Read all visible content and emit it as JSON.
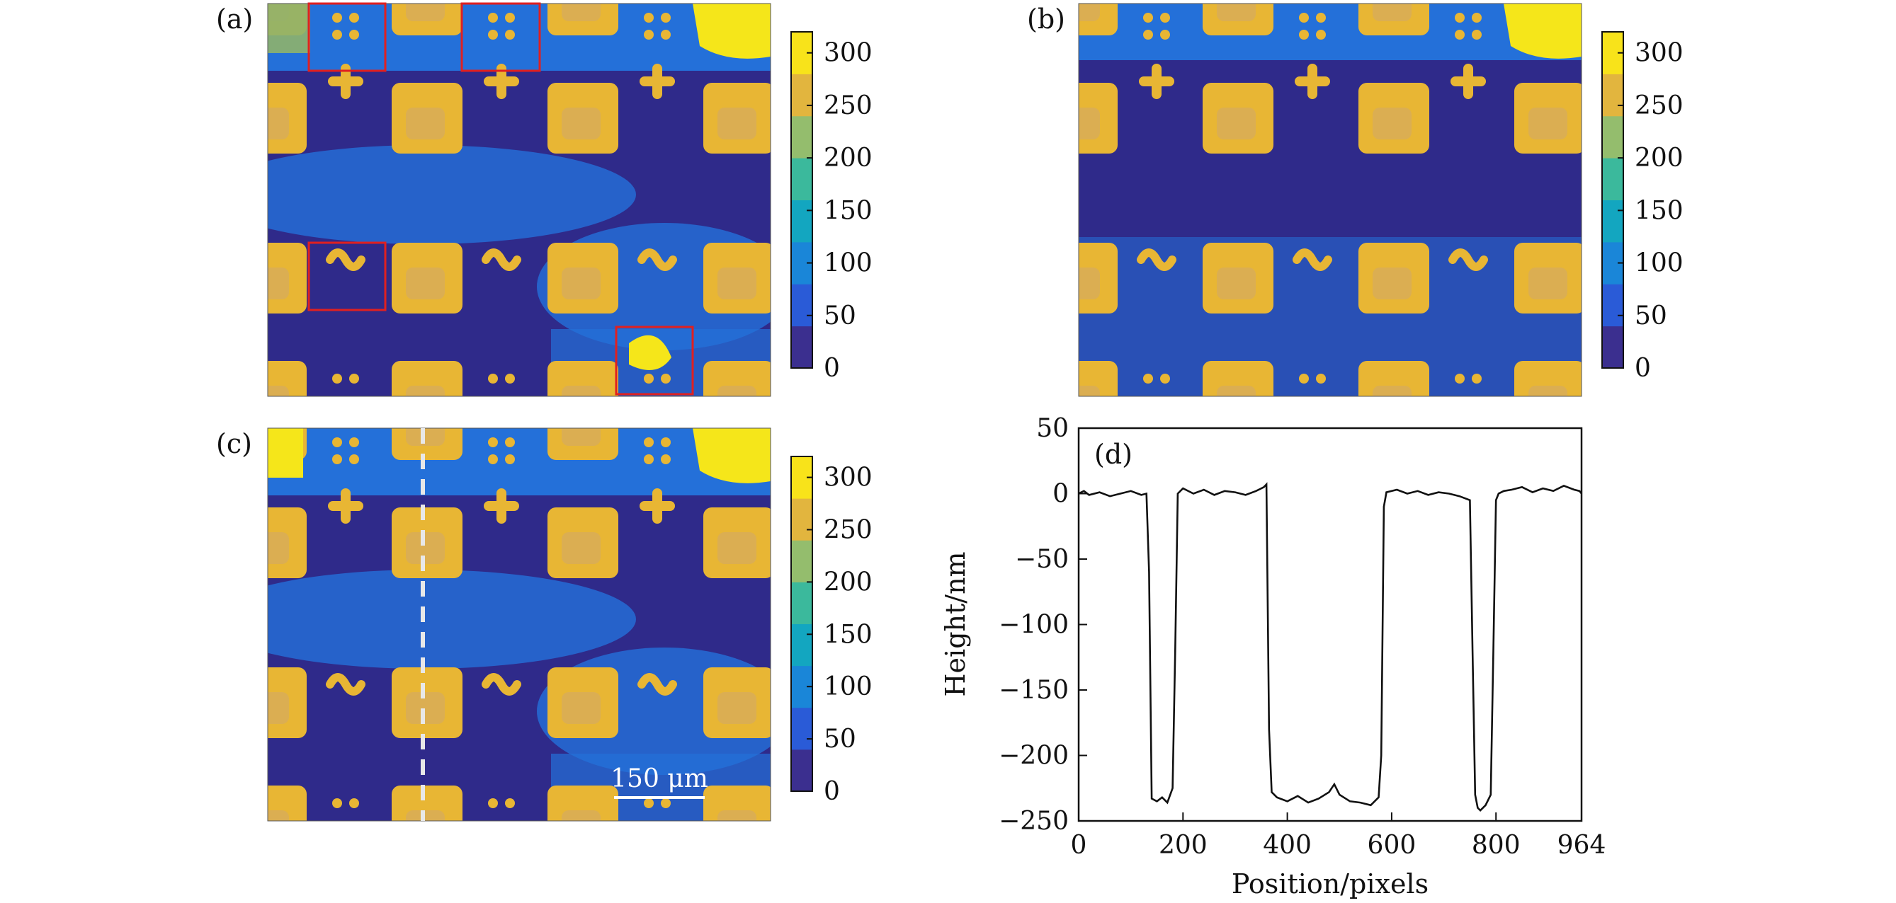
{
  "panels": {
    "a": {
      "label": "(a)"
    },
    "b": {
      "label": "(b)"
    },
    "c": {
      "label": "(c)",
      "scalebar": "150 μm"
    },
    "d": {
      "label": "(d)"
    }
  },
  "colorbar": {
    "ticks": [
      "0",
      "50",
      "100",
      "150",
      "200",
      "250",
      "300"
    ],
    "colors": [
      "#3b2f8f",
      "#2a5bd7",
      "#1a86d8",
      "#13a6c0",
      "#3bb99c",
      "#94bd6d",
      "#e2b53e",
      "#f8e31a"
    ]
  },
  "map_colors": {
    "substrate": "#2f2a8a",
    "mid_blue": "#2470d9",
    "pad": "#e8b634",
    "pad_shade": "#d7ad5a",
    "yellow": "#f5e61a",
    "green": "#8fb36a",
    "highlight_box": "#e02020"
  },
  "chart_data": {
    "type": "line",
    "title": "",
    "xlabel": "Position/pixels",
    "ylabel": "Height/nm",
    "xlim": [
      0,
      964
    ],
    "ylim": [
      -250,
      50
    ],
    "xticks": [
      "0",
      "200",
      "400",
      "600",
      "800",
      "964"
    ],
    "yticks": [
      "50",
      "0",
      "−50",
      "−100",
      "−150",
      "−200",
      "−250"
    ],
    "grid": false,
    "series": [
      {
        "x": [
          0,
          10,
          20,
          40,
          60,
          80,
          100,
          120,
          130,
          135,
          140,
          150,
          160,
          170,
          180,
          185,
          190,
          200,
          220,
          240,
          260,
          280,
          300,
          320,
          340,
          355,
          360,
          365,
          370,
          380,
          400,
          420,
          440,
          460,
          480,
          490,
          500,
          520,
          540,
          560,
          575,
          580,
          585,
          590,
          610,
          630,
          650,
          670,
          690,
          710,
          730,
          750,
          755,
          760,
          765,
          770,
          780,
          790,
          795,
          800,
          805,
          815,
          830,
          850,
          870,
          890,
          910,
          930,
          950,
          960,
          964
        ],
        "y": [
          0,
          2,
          -1,
          1,
          -2,
          0,
          2,
          -1,
          0,
          -60,
          -233,
          -235,
          -232,
          -236,
          -225,
          -120,
          0,
          4,
          0,
          3,
          -1,
          2,
          1,
          -1,
          2,
          5,
          7,
          -180,
          -228,
          -232,
          -235,
          -231,
          -236,
          -233,
          -228,
          -222,
          -230,
          -235,
          -236,
          -238,
          -232,
          -200,
          -10,
          1,
          3,
          0,
          2,
          -1,
          1,
          0,
          -2,
          -5,
          -120,
          -230,
          -240,
          -242,
          -238,
          -230,
          -120,
          -5,
          0,
          2,
          3,
          5,
          1,
          4,
          2,
          6,
          3,
          2,
          0
        ]
      }
    ]
  }
}
